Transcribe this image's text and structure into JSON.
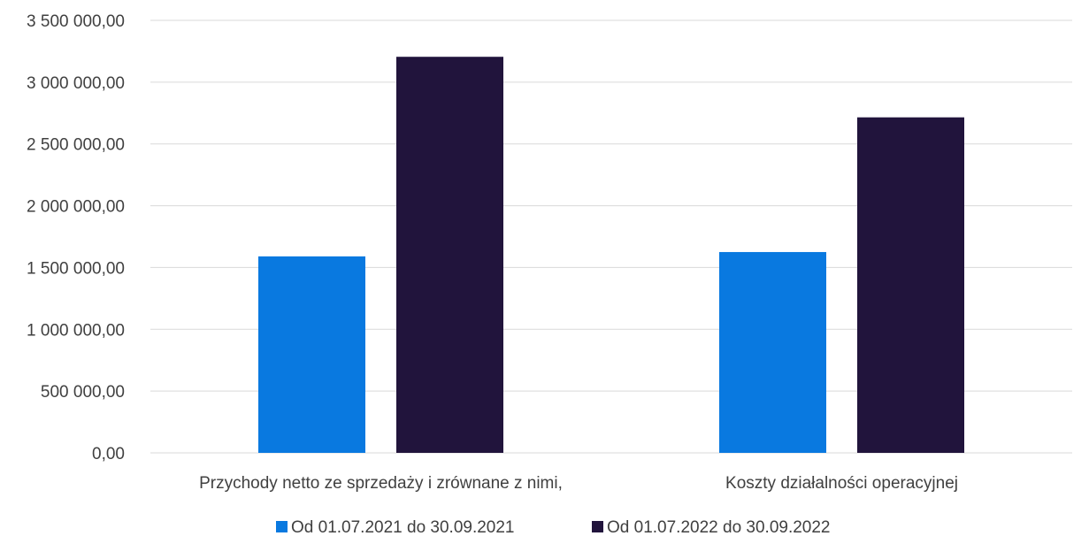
{
  "chart_data": {
    "type": "bar",
    "categories": [
      "Przychody netto ze sprzedaży i zrównane z nimi,",
      "Koszty działalności operacyjnej"
    ],
    "series": [
      {
        "name": "Od 01.07.2021 do 30.09.2021",
        "color": "#0979e0",
        "values": [
          1590000,
          1625000
        ]
      },
      {
        "name": "Od 01.07.2022 do 30.09.2022",
        "color": "#21143c",
        "values": [
          3205000,
          2715000
        ]
      }
    ],
    "yticks": [
      "0,00",
      "500 000,00",
      "1 000 000,00",
      "1 500 000,00",
      "2 000 000,00",
      "2 500 000,00",
      "3 000 000,00",
      "3 500 000,00"
    ],
    "ylim": [
      0,
      3500000
    ],
    "grid": true,
    "legend_position": "bottom"
  }
}
